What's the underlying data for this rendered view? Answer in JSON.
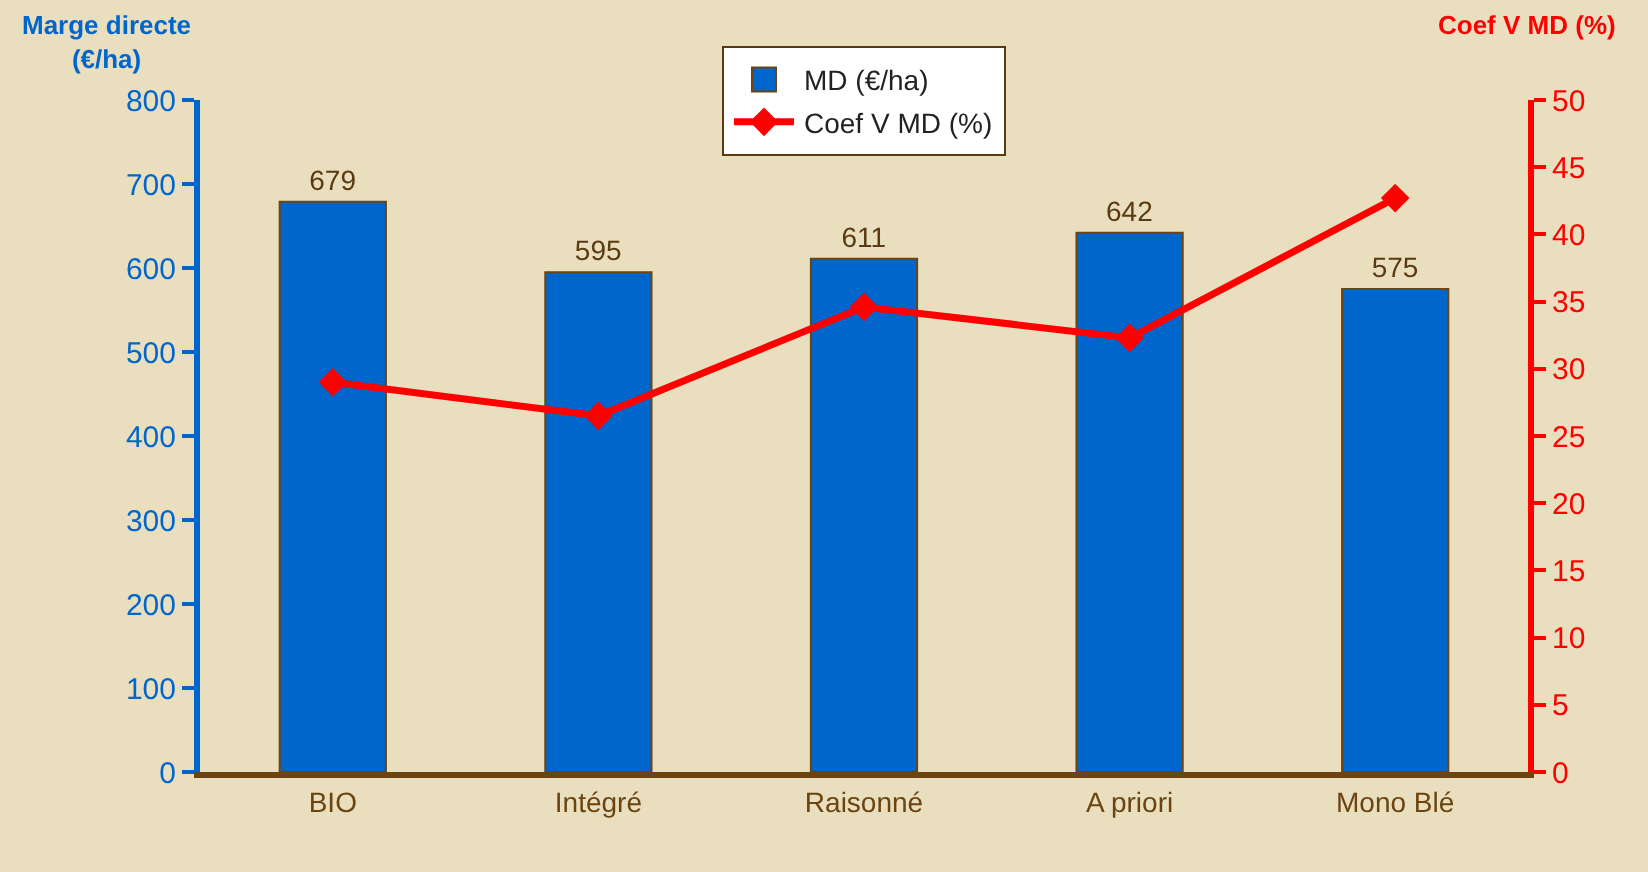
{
  "chart_data": {
    "type": "bar",
    "ylabel": "Marge directe\n(€/ha)",
    "y2label": "Coef V MD (%)",
    "categories": [
      "BIO",
      "Intégré",
      "Raisonné",
      "A priori",
      "Mono Blé"
    ],
    "series": [
      {
        "name": "MD (€/ha)",
        "color": "#0066cc",
        "values": [
          679,
          595,
          611,
          642,
          575
        ],
        "value_labels": [
          "679",
          "595",
          "611",
          "642",
          "575"
        ]
      },
      {
        "name": "Coef V MD (%)",
        "type": "line",
        "axis": "y2",
        "color": "#ff0000",
        "marker": "diamond",
        "values": [
          29.0,
          26.5,
          34.6,
          32.3,
          42.7
        ]
      }
    ],
    "ylim": [
      0,
      800
    ],
    "yticks": [
      0,
      100,
      200,
      300,
      400,
      500,
      600,
      700,
      800
    ],
    "y2lim": [
      0,
      50
    ],
    "y2ticks": [
      0,
      5,
      10,
      15,
      20,
      25,
      30,
      35,
      40,
      45,
      50
    ],
    "grid": false,
    "legend": "top"
  }
}
